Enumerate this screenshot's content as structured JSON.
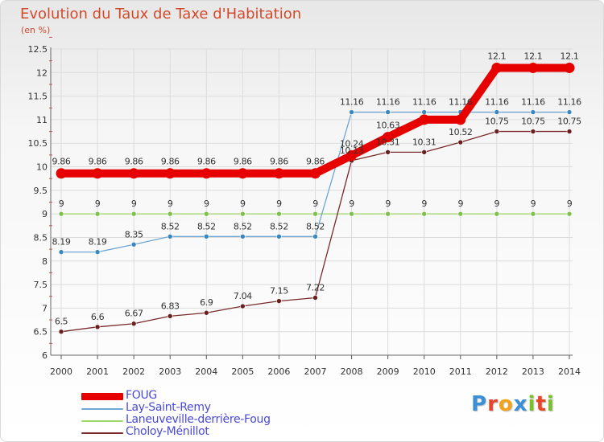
{
  "title": "Evolution du Taux de Taxe d'Habitation",
  "subtitle": "(en %)",
  "logo": {
    "text": "Proxiti",
    "letters": [
      {
        "ch": "P",
        "color": "#3a8fd6"
      },
      {
        "ch": "r",
        "color": "#e8462a"
      },
      {
        "ch": "o",
        "color": "#f3a21b"
      },
      {
        "ch": "x",
        "color": "#3a8fd6"
      },
      {
        "ch": "i",
        "color": "#7bbf2a"
      },
      {
        "ch": "t",
        "color": "#e8462a"
      },
      {
        "ch": "i",
        "color": "#7bbf2a"
      }
    ]
  },
  "chart_data": {
    "type": "line",
    "title": "Evolution du Taux de Taxe d'Habitation",
    "ylabel": "(en %)",
    "xlabel": "",
    "ylim": [
      6,
      12.5
    ],
    "yticks": [
      6,
      6.5,
      7,
      7.5,
      8,
      8.5,
      9,
      9.5,
      10,
      10.5,
      11,
      11.5,
      12,
      12.5
    ],
    "ytick_labels": [
      "6",
      "6.5",
      "7",
      "7.5",
      "8",
      "8.5",
      "9",
      "9.5",
      "10",
      "10.5",
      "11",
      "11.5",
      "12",
      "12.5"
    ],
    "grid": true,
    "legend_position": "bottom-left",
    "categories": [
      "2000",
      "2001",
      "2002",
      "2003",
      "2004",
      "2005",
      "2006",
      "2007",
      "2008",
      "2009",
      "2010",
      "2011",
      "2012",
      "2013",
      "2014"
    ],
    "series": [
      {
        "name": "FOUG",
        "color": "#e60000",
        "bold": true,
        "values": [
          9.86,
          9.86,
          9.86,
          9.86,
          9.86,
          9.86,
          9.86,
          9.86,
          10.24,
          10.63,
          11,
          11,
          12.1,
          12.1,
          12.1
        ],
        "labels": [
          "9.86",
          "9.86",
          "9.86",
          "9.86",
          "9.86",
          "9.86",
          "9.86",
          "9.86",
          "10.24",
          "10.63",
          "",
          "",
          "12.1",
          "12.1",
          "12.1"
        ]
      },
      {
        "name": "Lay-Saint-Remy",
        "color": "#6ea6d6",
        "marker": "#3a87c0",
        "values": [
          8.19,
          8.19,
          8.35,
          8.52,
          8.52,
          8.52,
          8.52,
          8.52,
          11.16,
          11.16,
          11.16,
          11.16,
          11.16,
          11.16,
          11.16
        ],
        "labels": [
          "8.19",
          "8.19",
          "8.35",
          "8.52",
          "8.52",
          "8.52",
          "8.52",
          "8.52",
          "11.16",
          "11.16",
          "11.16",
          "11.16",
          "11.16",
          "11.16",
          "11.16"
        ]
      },
      {
        "name": "Laneuveville-derrière-Foug",
        "color": "#9ed66a",
        "marker": "#7ec04a",
        "values": [
          9,
          9,
          9,
          9,
          9,
          9,
          9,
          9,
          9,
          9,
          9,
          9,
          9,
          9,
          9
        ],
        "labels": [
          "9",
          "9",
          "9",
          "9",
          "9",
          "9",
          "9",
          "9",
          "9",
          "9",
          "9",
          "9",
          "9",
          "9",
          "9"
        ]
      },
      {
        "name": "Choloy-Ménillot",
        "color": "#7a2a2a",
        "marker": "#6a1f1f",
        "values": [
          6.5,
          6.6,
          6.67,
          6.83,
          6.9,
          7.04,
          7.15,
          7.22,
          10.13,
          10.31,
          10.31,
          10.52,
          10.75,
          10.75,
          10.75
        ],
        "labels": [
          "6.5",
          "6.6",
          "6.67",
          "6.83",
          "6.9",
          "7.04",
          "7.15",
          "7.22",
          "10.13",
          "10.31",
          "10.31",
          "10.52",
          "10.75",
          "10.75",
          "10.75"
        ]
      }
    ]
  }
}
